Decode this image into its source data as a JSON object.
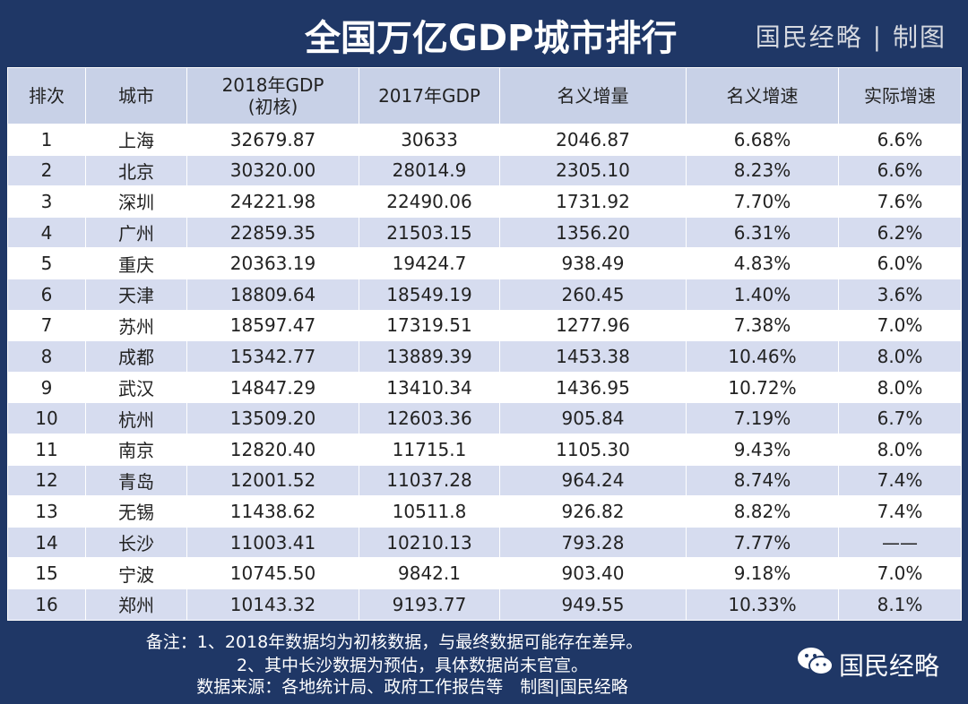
{
  "header": {
    "title": "全国万亿GDP城市排行",
    "credit": "国民经略 | 制图"
  },
  "table": {
    "columns": [
      "排次",
      "城市",
      "2018年GDP\n(初核)",
      "2017年GDP",
      "名义增量",
      "名义增速",
      "实际增速"
    ],
    "rows": [
      [
        "1",
        "上海",
        "32679.87",
        "30633",
        "2046.87",
        "6.68%",
        "6.6%"
      ],
      [
        "2",
        "北京",
        "30320.00",
        "28014.9",
        "2305.10",
        "8.23%",
        "6.6%"
      ],
      [
        "3",
        "深圳",
        "24221.98",
        "22490.06",
        "1731.92",
        "7.70%",
        "7.6%"
      ],
      [
        "4",
        "广州",
        "22859.35",
        "21503.15",
        "1356.20",
        "6.31%",
        "6.2%"
      ],
      [
        "5",
        "重庆",
        "20363.19",
        "19424.7",
        "938.49",
        "4.83%",
        "6.0%"
      ],
      [
        "6",
        "天津",
        "18809.64",
        "18549.19",
        "260.45",
        "1.40%",
        "3.6%"
      ],
      [
        "7",
        "苏州",
        "18597.47",
        "17319.51",
        "1277.96",
        "7.38%",
        "7.0%"
      ],
      [
        "8",
        "成都",
        "15342.77",
        "13889.39",
        "1453.38",
        "10.46%",
        "8.0%"
      ],
      [
        "9",
        "武汉",
        "14847.29",
        "13410.34",
        "1436.95",
        "10.72%",
        "8.0%"
      ],
      [
        "10",
        "杭州",
        "13509.20",
        "12603.36",
        "905.84",
        "7.19%",
        "6.7%"
      ],
      [
        "11",
        "南京",
        "12820.40",
        "11715.1",
        "1105.30",
        "9.43%",
        "8.0%"
      ],
      [
        "12",
        "青岛",
        "12001.52",
        "11037.28",
        "964.24",
        "8.74%",
        "7.4%"
      ],
      [
        "13",
        "无锡",
        "11438.62",
        "10511.8",
        "926.82",
        "8.82%",
        "7.4%"
      ],
      [
        "14",
        "长沙",
        "11003.41",
        "10210.13",
        "793.28",
        "7.77%",
        "——"
      ],
      [
        "15",
        "宁波",
        "10745.50",
        "9842.1",
        "903.40",
        "9.18%",
        "7.0%"
      ],
      [
        "16",
        "郑州",
        "10143.32",
        "9193.77",
        "949.55",
        "10.33%",
        "8.1%"
      ]
    ]
  },
  "footer": {
    "notes": [
      "备注：1、2018年数据均为初核数据，与最终数据可能存在差异。",
      "2、其中长沙数据为预估，具体数据尚未官宣。",
      "数据来源：各地统计局、政府工作报告等　制图|国民经略"
    ],
    "brand": "国民经略"
  }
}
